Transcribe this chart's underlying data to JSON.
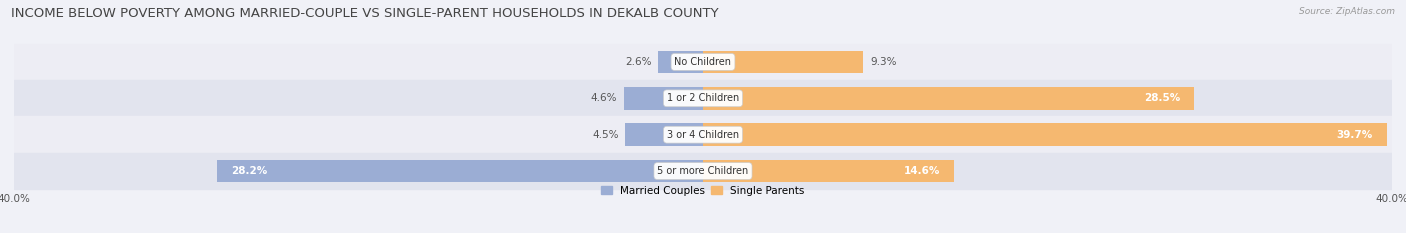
{
  "title": "INCOME BELOW POVERTY AMONG MARRIED-COUPLE VS SINGLE-PARENT HOUSEHOLDS IN DEKALB COUNTY",
  "source": "Source: ZipAtlas.com",
  "categories": [
    "No Children",
    "1 or 2 Children",
    "3 or 4 Children",
    "5 or more Children"
  ],
  "married_values": [
    2.6,
    4.6,
    4.5,
    28.2
  ],
  "single_values": [
    9.3,
    28.5,
    39.7,
    14.6
  ],
  "married_color": "#9badd4",
  "single_color": "#f5b870",
  "axis_max": 40.0,
  "legend_labels": [
    "Married Couples",
    "Single Parents"
  ],
  "title_fontsize": 9.5,
  "label_fontsize": 7.5,
  "bar_height": 0.62,
  "row_colors": [
    "#ededf4",
    "#e2e4ee",
    "#ededf4",
    "#e2e4ee"
  ],
  "figsize": [
    14.06,
    2.33
  ],
  "dpi": 100
}
